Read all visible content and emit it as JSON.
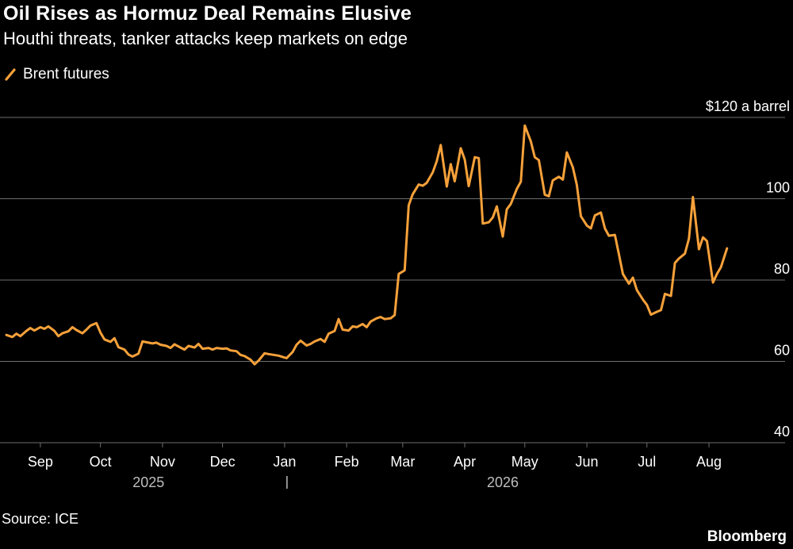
{
  "header": {
    "title": "Oil Rises as Hormuz Deal Remains Elusive",
    "subtitle": "Houthi threats, tanker attacks keep markets on edge"
  },
  "footer": {
    "source": "Source: ICE",
    "brand": "Bloomberg"
  },
  "colors": {
    "background": "#000000",
    "line": "#f7a13a",
    "grid": "#6e6e6e",
    "text": "#ffffff",
    "year_text": "#bdbdbd"
  },
  "chart_data": {
    "type": "line",
    "title": "Oil Rises as Hormuz Deal Remains Elusive",
    "subtitle": "Houthi threats, tanker attacks keep markets on edge",
    "ylabel": "",
    "y_unit_label": "$120 a barrel",
    "ylim": [
      40,
      120
    ],
    "yticks": [
      40,
      60,
      80,
      100,
      120
    ],
    "ytick_labels": [
      "40",
      "60",
      "80",
      "100",
      "$120 a barrel"
    ],
    "grid": true,
    "legend_position": "top-left",
    "xlim": [
      "2025-08-15",
      "2026-08-20"
    ],
    "x_ticks": [
      {
        "date": "2025-09-01",
        "label": "Sep"
      },
      {
        "date": "2025-10-01",
        "label": "Oct"
      },
      {
        "date": "2025-11-01",
        "label": "Nov"
      },
      {
        "date": "2025-12-01",
        "label": "Dec"
      },
      {
        "date": "2026-01-01",
        "label": "Jan"
      },
      {
        "date": "2026-02-01",
        "label": "Feb"
      },
      {
        "date": "2026-03-01",
        "label": "Mar"
      },
      {
        "date": "2026-04-01",
        "label": "Apr"
      },
      {
        "date": "2026-05-01",
        "label": "May"
      },
      {
        "date": "2026-06-01",
        "label": "Jun"
      },
      {
        "date": "2026-07-01",
        "label": "Jul"
      },
      {
        "date": "2026-08-01",
        "label": "Aug"
      }
    ],
    "year_labels": [
      {
        "label": "2025",
        "date": "2025-10-25"
      },
      {
        "label": "2026",
        "date": "2026-04-20"
      }
    ],
    "year_divider_date": "2026-01-01",
    "series": [
      {
        "name": "Brent futures",
        "x": [
          "2025-08-15",
          "2025-08-18",
          "2025-08-20",
          "2025-08-22",
          "2025-08-25",
          "2025-08-27",
          "2025-08-29",
          "2025-09-01",
          "2025-09-03",
          "2025-09-05",
          "2025-09-08",
          "2025-09-10",
          "2025-09-12",
          "2025-09-15",
          "2025-09-17",
          "2025-09-19",
          "2025-09-22",
          "2025-09-24",
          "2025-09-26",
          "2025-09-29",
          "2025-10-01",
          "2025-10-03",
          "2025-10-06",
          "2025-10-08",
          "2025-10-10",
          "2025-10-13",
          "2025-10-15",
          "2025-10-17",
          "2025-10-20",
          "2025-10-22",
          "2025-10-24",
          "2025-10-27",
          "2025-10-29",
          "2025-10-31",
          "2025-11-03",
          "2025-11-05",
          "2025-11-07",
          "2025-11-10",
          "2025-11-12",
          "2025-11-14",
          "2025-11-17",
          "2025-11-19",
          "2025-11-21",
          "2025-11-24",
          "2025-11-26",
          "2025-11-28",
          "2025-12-01",
          "2025-12-03",
          "2025-12-05",
          "2025-12-08",
          "2025-12-10",
          "2025-12-12",
          "2025-12-15",
          "2025-12-17",
          "2025-12-19",
          "2025-12-22",
          "2025-12-24",
          "2025-12-29",
          "2025-12-31",
          "2026-01-02",
          "2026-01-05",
          "2026-01-07",
          "2026-01-09",
          "2026-01-12",
          "2026-01-14",
          "2026-01-16",
          "2026-01-19",
          "2026-01-21",
          "2026-01-23",
          "2026-01-26",
          "2026-01-28",
          "2026-01-30",
          "2026-02-02",
          "2026-02-04",
          "2026-02-06",
          "2026-02-09",
          "2026-02-11",
          "2026-02-13",
          "2026-02-16",
          "2026-02-18",
          "2026-02-20",
          "2026-02-23",
          "2026-02-25",
          "2026-02-27",
          "2026-03-02",
          "2026-03-04",
          "2026-03-06",
          "2026-03-09",
          "2026-03-11",
          "2026-03-13",
          "2026-03-16",
          "2026-03-18",
          "2026-03-20",
          "2026-03-23",
          "2026-03-25",
          "2026-03-27",
          "2026-03-30",
          "2026-04-01",
          "2026-04-03",
          "2026-04-06",
          "2026-04-08",
          "2026-04-10",
          "2026-04-13",
          "2026-04-15",
          "2026-04-17",
          "2026-04-20",
          "2026-04-22",
          "2026-04-24",
          "2026-04-27",
          "2026-04-29",
          "2026-05-01",
          "2026-05-04",
          "2026-05-06",
          "2026-05-08",
          "2026-05-11",
          "2026-05-13",
          "2026-05-15",
          "2026-05-18",
          "2026-05-20",
          "2026-05-22",
          "2026-05-25",
          "2026-05-27",
          "2026-05-29",
          "2026-06-01",
          "2026-06-03",
          "2026-06-05",
          "2026-06-08",
          "2026-06-10",
          "2026-06-12",
          "2026-06-15",
          "2026-06-17",
          "2026-06-19",
          "2026-06-22",
          "2026-06-24",
          "2026-06-26",
          "2026-06-29",
          "2026-07-01",
          "2026-07-03",
          "2026-07-06",
          "2026-07-08",
          "2026-07-10",
          "2026-07-13",
          "2026-07-15",
          "2026-07-17",
          "2026-07-20",
          "2026-07-22",
          "2026-07-24",
          "2026-07-27",
          "2026-07-29",
          "2026-07-31",
          "2026-08-03",
          "2026-08-05",
          "2026-08-07",
          "2026-08-10"
        ],
        "values": [
          66.5,
          66,
          66.8,
          66.2,
          67.5,
          68.2,
          67.6,
          68.4,
          68,
          68.6,
          67.5,
          66.2,
          66.9,
          67.4,
          68.4,
          67.7,
          66.9,
          67.8,
          68.8,
          69.4,
          67.1,
          65.4,
          64.8,
          65.7,
          63.5,
          62.9,
          61.7,
          61.2,
          61.9,
          64.9,
          64.7,
          64.4,
          64.6,
          64.1,
          63.8,
          63.3,
          64.2,
          63.4,
          62.9,
          63.8,
          63.4,
          64.3,
          63.1,
          63.3,
          62.9,
          63.3,
          63.1,
          63.2,
          62.7,
          62.5,
          61.6,
          61.3,
          60.4,
          59.3,
          60.2,
          62,
          61.8,
          61.4,
          61.1,
          60.8,
          62.3,
          64.1,
          65.1,
          63.9,
          64.3,
          64.9,
          65.5,
          64.8,
          66.8,
          67.5,
          70.4,
          67.8,
          67.6,
          68.6,
          68.4,
          69.2,
          68.4,
          69.8,
          70.6,
          70.9,
          70.4,
          70.6,
          71.4,
          81.5,
          82.4,
          98.4,
          101.1,
          103.5,
          103.2,
          103.9,
          106.5,
          109.2,
          113.2,
          103,
          108.5,
          104.3,
          112.4,
          109.6,
          103.1,
          110.2,
          110,
          93.9,
          94.2,
          95.4,
          98.1,
          90.7,
          97.4,
          98.7,
          102.4,
          104.2,
          118,
          114.1,
          110.2,
          109.5,
          101,
          100.6,
          104.5,
          105.4,
          104.7,
          111.4,
          107.7,
          103.4,
          95.7,
          93.4,
          92.7,
          95.9,
          96.6,
          92.7,
          90.9,
          91.1,
          86.4,
          81.5,
          79.1,
          80.6,
          77.5,
          75.2,
          73.9,
          71.5,
          72.2,
          72.6,
          76.6,
          76.1,
          84.2,
          85.3,
          86.5,
          90.2,
          100.4,
          87.6,
          90.5,
          89.6,
          79.4,
          81.5,
          83.2,
          87.8
        ]
      }
    ]
  }
}
